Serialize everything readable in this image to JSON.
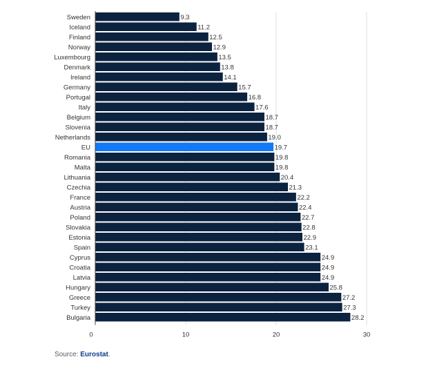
{
  "chart_data": {
    "type": "bar",
    "orientation": "horizontal",
    "categories": [
      "Sweden",
      "Iceland",
      "Finland",
      "Norway",
      "Luxembourg",
      "Denmark",
      "Ireland",
      "Germany",
      "Portugal",
      "Italy",
      "Belgium",
      "Slovenia",
      "Netherlands",
      "EU",
      "Romania",
      "Malta",
      "Lithuania",
      "Czechia",
      "France",
      "Austria",
      "Poland",
      "Slovakia",
      "Estonia",
      "Spain",
      "Cyprus",
      "Croatia",
      "Latvia",
      "Hungary",
      "Greece",
      "Turkey",
      "Bulgaria"
    ],
    "values": [
      9.3,
      11.2,
      12.5,
      12.9,
      13.5,
      13.8,
      14.1,
      15.7,
      16.8,
      17.6,
      18.7,
      18.7,
      19.0,
      19.7,
      19.8,
      19.8,
      20.4,
      21.3,
      22.2,
      22.4,
      22.7,
      22.8,
      22.9,
      23.1,
      24.9,
      24.9,
      24.9,
      25.8,
      27.2,
      27.3,
      28.2
    ],
    "value_labels": [
      "9.3",
      "11.2",
      "12.5",
      "12.9",
      "13.5",
      "13.8",
      "14.1",
      "15.7",
      "16.8",
      "17.6",
      "18.7",
      "18.7",
      "19.0",
      "19.7",
      "19.8",
      "19.8",
      "20.4",
      "21.3",
      "22.2",
      "22.4",
      "22.7",
      "22.8",
      "22.9",
      "23.1",
      "24.9",
      "24.9",
      "24.9",
      "25.8",
      "27.2",
      "27.3",
      "28.2"
    ],
    "highlight": "EU",
    "xlim": [
      0,
      30
    ],
    "x_ticks": [
      "0",
      "10",
      "20",
      "30"
    ],
    "grid": true,
    "colors": {
      "bar": "#0c2340",
      "highlight": "#1479f5",
      "grid": "#dddddd",
      "axis": "#444444"
    }
  },
  "source": {
    "prefix": "Source: ",
    "name": "Eurostat",
    "suffix": "."
  }
}
